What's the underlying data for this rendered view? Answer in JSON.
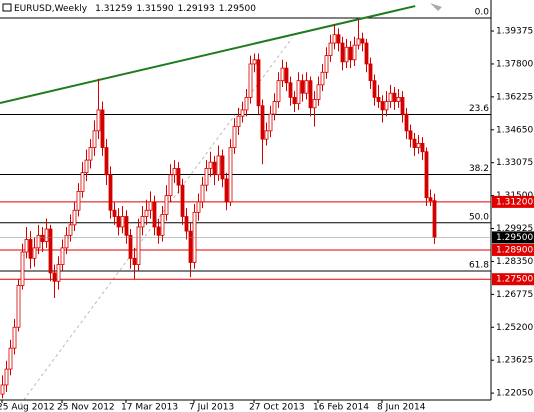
{
  "chart_data": {
    "type": "candlestick",
    "title": "EURUSD,Weekly",
    "ohlc_labels": [
      "1.31259",
      "1.31590",
      "1.29193",
      "1.29500"
    ],
    "bull_color": "#ffffff",
    "bear_color": "#d40000",
    "wick_color": "#d40000",
    "xlim": [
      -0.5,
      122.25
    ],
    "ylim": [
      1.2172,
      1.4086
    ],
    "xticks": [
      {
        "value": 0,
        "label": "25 Aug 2012"
      },
      {
        "value": 15,
        "label": "25 Nov 2012"
      },
      {
        "value": 31,
        "label": "17 Mar 2013"
      },
      {
        "value": 48,
        "label": "7 Jul 2013"
      },
      {
        "value": 63,
        "label": "27 Oct 2013"
      },
      {
        "value": 79,
        "label": "16 Feb 2014"
      },
      {
        "value": 95,
        "label": "8 Jun 2014"
      }
    ],
    "yticks": [
      {
        "value": 1.39375,
        "label": "1.39375"
      },
      {
        "value": 1.378,
        "label": "1.37800"
      },
      {
        "value": 1.36225,
        "label": "1.36225"
      },
      {
        "value": 1.3465,
        "label": "1.34650"
      },
      {
        "value": 1.33075,
        "label": "1.33075"
      },
      {
        "value": 1.315,
        "label": "1.31500"
      },
      {
        "value": 1.29925,
        "label": "1.29925"
      },
      {
        "value": 1.2835,
        "label": "1.28350"
      },
      {
        "value": 1.26775,
        "label": "1.26775"
      },
      {
        "value": 1.252,
        "label": "1.25200"
      },
      {
        "value": 1.23625,
        "label": "1.23625"
      },
      {
        "value": 1.2205,
        "label": "1.22050"
      }
    ],
    "fib_levels": [
      {
        "value": 1.4,
        "label": "0.0"
      },
      {
        "value": 1.3538,
        "label": "23.6"
      },
      {
        "value": 1.3251,
        "label": "38.2"
      },
      {
        "value": 1.302,
        "label": "50.0"
      },
      {
        "value": 1.2789,
        "label": "61.8"
      }
    ],
    "price_lines": [
      {
        "value": 1.312,
        "label": "1.31200",
        "color": "#e00000"
      },
      {
        "value": 1.289,
        "label": "1.28900",
        "color": "#e00000"
      },
      {
        "value": 1.275,
        "label": "1.27500",
        "color": "#e00000"
      }
    ],
    "current_price": {
      "value": 1.295,
      "label": "1.29500"
    },
    "trendline": {
      "color": "#1e7b1e",
      "points": [
        [
          -0.5,
          1.3593
        ],
        [
          103.3,
          1.4057
        ]
      ]
    },
    "ohlc": [
      [
        1.22,
        1.229,
        1.218,
        1.2244
      ],
      [
        1.2244,
        1.236,
        1.221,
        1.232
      ],
      [
        1.232,
        1.246,
        1.229,
        1.242
      ],
      [
        1.242,
        1.256,
        1.239,
        1.252
      ],
      [
        1.252,
        1.275,
        1.25,
        1.272
      ],
      [
        1.272,
        1.292,
        1.27,
        1.288
      ],
      [
        1.288,
        1.3,
        1.285,
        1.294
      ],
      [
        1.294,
        1.298,
        1.28,
        1.285
      ],
      [
        1.285,
        1.295,
        1.281,
        1.29
      ],
      [
        1.29,
        1.301,
        1.287,
        1.296
      ],
      [
        1.296,
        1.3,
        1.288,
        1.293
      ],
      [
        1.293,
        1.304,
        1.29,
        1.299
      ],
      [
        1.299,
        1.301,
        1.274,
        1.278
      ],
      [
        1.278,
        1.282,
        1.266,
        1.274
      ],
      [
        1.274,
        1.286,
        1.27,
        1.282
      ],
      [
        1.282,
        1.294,
        1.279,
        1.29
      ],
      [
        1.29,
        1.3,
        1.287,
        1.296
      ],
      [
        1.296,
        1.306,
        1.293,
        1.301
      ],
      [
        1.301,
        1.312,
        1.298,
        1.308
      ],
      [
        1.308,
        1.321,
        1.305,
        1.317
      ],
      [
        1.317,
        1.331,
        1.314,
        1.326
      ],
      [
        1.326,
        1.337,
        1.322,
        1.332
      ],
      [
        1.332,
        1.342,
        1.328,
        1.338
      ],
      [
        1.338,
        1.351,
        1.334,
        1.346
      ],
      [
        1.346,
        1.371,
        1.342,
        1.356
      ],
      [
        1.356,
        1.36,
        1.334,
        1.338
      ],
      [
        1.338,
        1.342,
        1.32,
        1.325
      ],
      [
        1.325,
        1.329,
        1.304,
        1.308
      ],
      [
        1.308,
        1.312,
        1.301,
        1.305
      ],
      [
        1.305,
        1.309,
        1.296,
        1.3
      ],
      [
        1.3,
        1.31,
        1.297,
        1.305
      ],
      [
        1.305,
        1.308,
        1.292,
        1.296
      ],
      [
        1.296,
        1.299,
        1.28,
        1.285
      ],
      [
        1.285,
        1.29,
        1.275,
        1.282
      ],
      [
        1.282,
        1.304,
        1.279,
        1.3
      ],
      [
        1.3,
        1.31,
        1.296,
        1.305
      ],
      [
        1.305,
        1.313,
        1.301,
        1.308
      ],
      [
        1.308,
        1.317,
        1.304,
        1.312
      ],
      [
        1.312,
        1.315,
        1.296,
        1.3
      ],
      [
        1.3,
        1.304,
        1.292,
        1.296
      ],
      [
        1.296,
        1.31,
        1.293,
        1.306
      ],
      [
        1.306,
        1.32,
        1.303,
        1.315
      ],
      [
        1.315,
        1.33,
        1.312,
        1.325
      ],
      [
        1.325,
        1.332,
        1.321,
        1.328
      ],
      [
        1.328,
        1.331,
        1.316,
        1.32
      ],
      [
        1.32,
        1.323,
        1.301,
        1.305
      ],
      [
        1.305,
        1.309,
        1.294,
        1.298
      ],
      [
        1.298,
        1.302,
        1.276,
        1.283
      ],
      [
        1.283,
        1.311,
        1.28,
        1.307
      ],
      [
        1.307,
        1.316,
        1.303,
        1.312
      ],
      [
        1.312,
        1.324,
        1.309,
        1.32
      ],
      [
        1.32,
        1.332,
        1.317,
        1.328
      ],
      [
        1.328,
        1.336,
        1.324,
        1.331
      ],
      [
        1.331,
        1.334,
        1.32,
        1.325
      ],
      [
        1.325,
        1.339,
        1.322,
        1.334
      ],
      [
        1.334,
        1.337,
        1.319,
        1.323
      ],
      [
        1.323,
        1.326,
        1.308,
        1.312
      ],
      [
        1.312,
        1.342,
        1.31,
        1.338
      ],
      [
        1.338,
        1.352,
        1.335,
        1.348
      ],
      [
        1.348,
        1.357,
        1.344,
        1.353
      ],
      [
        1.353,
        1.36,
        1.35,
        1.356
      ],
      [
        1.356,
        1.366,
        1.353,
        1.362
      ],
      [
        1.362,
        1.382,
        1.359,
        1.378
      ],
      [
        1.378,
        1.383,
        1.374,
        1.38
      ],
      [
        1.38,
        1.383,
        1.354,
        1.358
      ],
      [
        1.358,
        1.361,
        1.33,
        1.342
      ],
      [
        1.342,
        1.35,
        1.339,
        1.346
      ],
      [
        1.346,
        1.358,
        1.343,
        1.354
      ],
      [
        1.354,
        1.364,
        1.351,
        1.36
      ],
      [
        1.36,
        1.374,
        1.357,
        1.37
      ],
      [
        1.37,
        1.38,
        1.367,
        1.376
      ],
      [
        1.376,
        1.379,
        1.365,
        1.369
      ],
      [
        1.369,
        1.372,
        1.358,
        1.362
      ],
      [
        1.362,
        1.365,
        1.355,
        1.359
      ],
      [
        1.359,
        1.374,
        1.356,
        1.37
      ],
      [
        1.37,
        1.373,
        1.36,
        1.364
      ],
      [
        1.364,
        1.374,
        1.361,
        1.37
      ],
      [
        1.37,
        1.372,
        1.353,
        1.357
      ],
      [
        1.357,
        1.365,
        1.348,
        1.361
      ],
      [
        1.361,
        1.372,
        1.358,
        1.368
      ],
      [
        1.368,
        1.378,
        1.365,
        1.374
      ],
      [
        1.374,
        1.386,
        1.371,
        1.382
      ],
      [
        1.382,
        1.392,
        1.379,
        1.388
      ],
      [
        1.388,
        1.397,
        1.385,
        1.392
      ],
      [
        1.392,
        1.395,
        1.384,
        1.388
      ],
      [
        1.388,
        1.391,
        1.375,
        1.379
      ],
      [
        1.379,
        1.39,
        1.376,
        1.386
      ],
      [
        1.386,
        1.389,
        1.376,
        1.38
      ],
      [
        1.38,
        1.391,
        1.377,
        1.387
      ],
      [
        1.387,
        1.399,
        1.385,
        1.39
      ],
      [
        1.39,
        1.393,
        1.384,
        1.388
      ],
      [
        1.388,
        1.39,
        1.374,
        1.378
      ],
      [
        1.378,
        1.381,
        1.366,
        1.37
      ],
      [
        1.37,
        1.373,
        1.358,
        1.362
      ],
      [
        1.362,
        1.368,
        1.357,
        1.36
      ],
      [
        1.36,
        1.363,
        1.35,
        1.356
      ],
      [
        1.356,
        1.365,
        1.353,
        1.36
      ],
      [
        1.36,
        1.368,
        1.357,
        1.364
      ],
      [
        1.364,
        1.367,
        1.356,
        1.36
      ],
      [
        1.36,
        1.366,
        1.357,
        1.362
      ],
      [
        1.362,
        1.365,
        1.35,
        1.354
      ],
      [
        1.354,
        1.357,
        1.342,
        1.346
      ],
      [
        1.346,
        1.349,
        1.338,
        1.342
      ],
      [
        1.342,
        1.345,
        1.334,
        1.338
      ],
      [
        1.338,
        1.344,
        1.335,
        1.34
      ],
      [
        1.34,
        1.343,
        1.332,
        1.336
      ],
      [
        1.336,
        1.338,
        1.31,
        1.314
      ],
      [
        1.314,
        1.318,
        1.31,
        1.3126
      ],
      [
        1.31259,
        1.3159,
        1.29193,
        1.295
      ]
    ]
  }
}
